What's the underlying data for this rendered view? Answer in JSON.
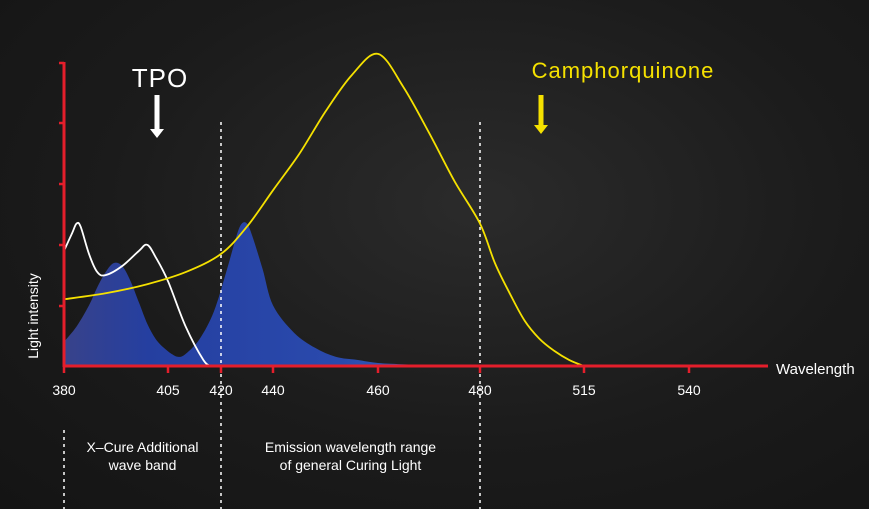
{
  "chart_data": {
    "type": "area",
    "xlabel": "Wavelength",
    "ylabel": "Light intensity",
    "x_ticks": [
      "380",
      "405",
      "420",
      "440",
      "460",
      "480",
      "515",
      "540"
    ],
    "grid": false,
    "series": [
      {
        "name": "TPO",
        "kind": "absorption-line",
        "color": "#ffffff",
        "points": [
          [
            380,
            0.38
          ],
          [
            382,
            0.44
          ],
          [
            383,
            0.47
          ],
          [
            384,
            0.46
          ],
          [
            386,
            0.37
          ],
          [
            388,
            0.31
          ],
          [
            390,
            0.3
          ],
          [
            394,
            0.33
          ],
          [
            398,
            0.38
          ],
          [
            400,
            0.4
          ],
          [
            402,
            0.36
          ],
          [
            405,
            0.28
          ],
          [
            410,
            0.13
          ],
          [
            415,
            0.02
          ],
          [
            417,
            0.0
          ]
        ]
      },
      {
        "name": "Camphorquinone",
        "kind": "absorption-line",
        "color": "#f5e100",
        "points": [
          [
            380,
            0.22
          ],
          [
            390,
            0.24
          ],
          [
            400,
            0.27
          ],
          [
            410,
            0.31
          ],
          [
            420,
            0.37
          ],
          [
            430,
            0.46
          ],
          [
            440,
            0.58
          ],
          [
            445,
            0.7
          ],
          [
            450,
            0.84
          ],
          [
            455,
            0.96
          ],
          [
            460,
            1.03
          ],
          [
            465,
            0.92
          ],
          [
            470,
            0.77
          ],
          [
            475,
            0.61
          ],
          [
            480,
            0.47
          ],
          [
            485,
            0.34
          ],
          [
            490,
            0.24
          ],
          [
            495,
            0.15
          ],
          [
            500,
            0.09
          ],
          [
            505,
            0.05
          ],
          [
            510,
            0.02
          ],
          [
            515,
            0.0
          ]
        ]
      },
      {
        "name": "Emission",
        "kind": "emission-area",
        "color": "#2f56b2",
        "points": [
          [
            380,
            0.08
          ],
          [
            383,
            0.13
          ],
          [
            386,
            0.2
          ],
          [
            388,
            0.26
          ],
          [
            390,
            0.31
          ],
          [
            392,
            0.34
          ],
          [
            394,
            0.33
          ],
          [
            396,
            0.28
          ],
          [
            398,
            0.21
          ],
          [
            400,
            0.14
          ],
          [
            402,
            0.09
          ],
          [
            404,
            0.06
          ],
          [
            406,
            0.04
          ],
          [
            408,
            0.03
          ],
          [
            410,
            0.04
          ],
          [
            414,
            0.09
          ],
          [
            418,
            0.18
          ],
          [
            422,
            0.31
          ],
          [
            426,
            0.43
          ],
          [
            428,
            0.47
          ],
          [
            430,
            0.47
          ],
          [
            432,
            0.43
          ],
          [
            436,
            0.32
          ],
          [
            440,
            0.2
          ],
          [
            444,
            0.11
          ],
          [
            448,
            0.06
          ],
          [
            452,
            0.03
          ],
          [
            456,
            0.02
          ],
          [
            460,
            0.01
          ],
          [
            466,
            0.005
          ],
          [
            472,
            0.0
          ]
        ]
      }
    ],
    "annotations": [
      {
        "id": "tpo",
        "text": "TPO",
        "color": "#ffffff",
        "arrow_at": 402
      },
      {
        "id": "cq",
        "text": "Camphorquinone",
        "color": "#f5e100",
        "arrow_at": 480
      }
    ],
    "ranges": [
      {
        "text": "X-Cure Additional wave band",
        "lines": [
          "X–Cure Additional",
          "wave band"
        ],
        "from": 380,
        "to": 420
      },
      {
        "text": "Emission wavelength range of general Curing Light",
        "lines": [
          "Emission wavelength range",
          "of general Curing Light"
        ],
        "from": 420,
        "to": 480
      }
    ]
  },
  "colors": {
    "axis": "#e41e2b",
    "text": "#ffffff",
    "emission_blue": "#2f56b2",
    "emission_cyan": "#4bd3ea",
    "cq_yellow": "#f5e100"
  }
}
